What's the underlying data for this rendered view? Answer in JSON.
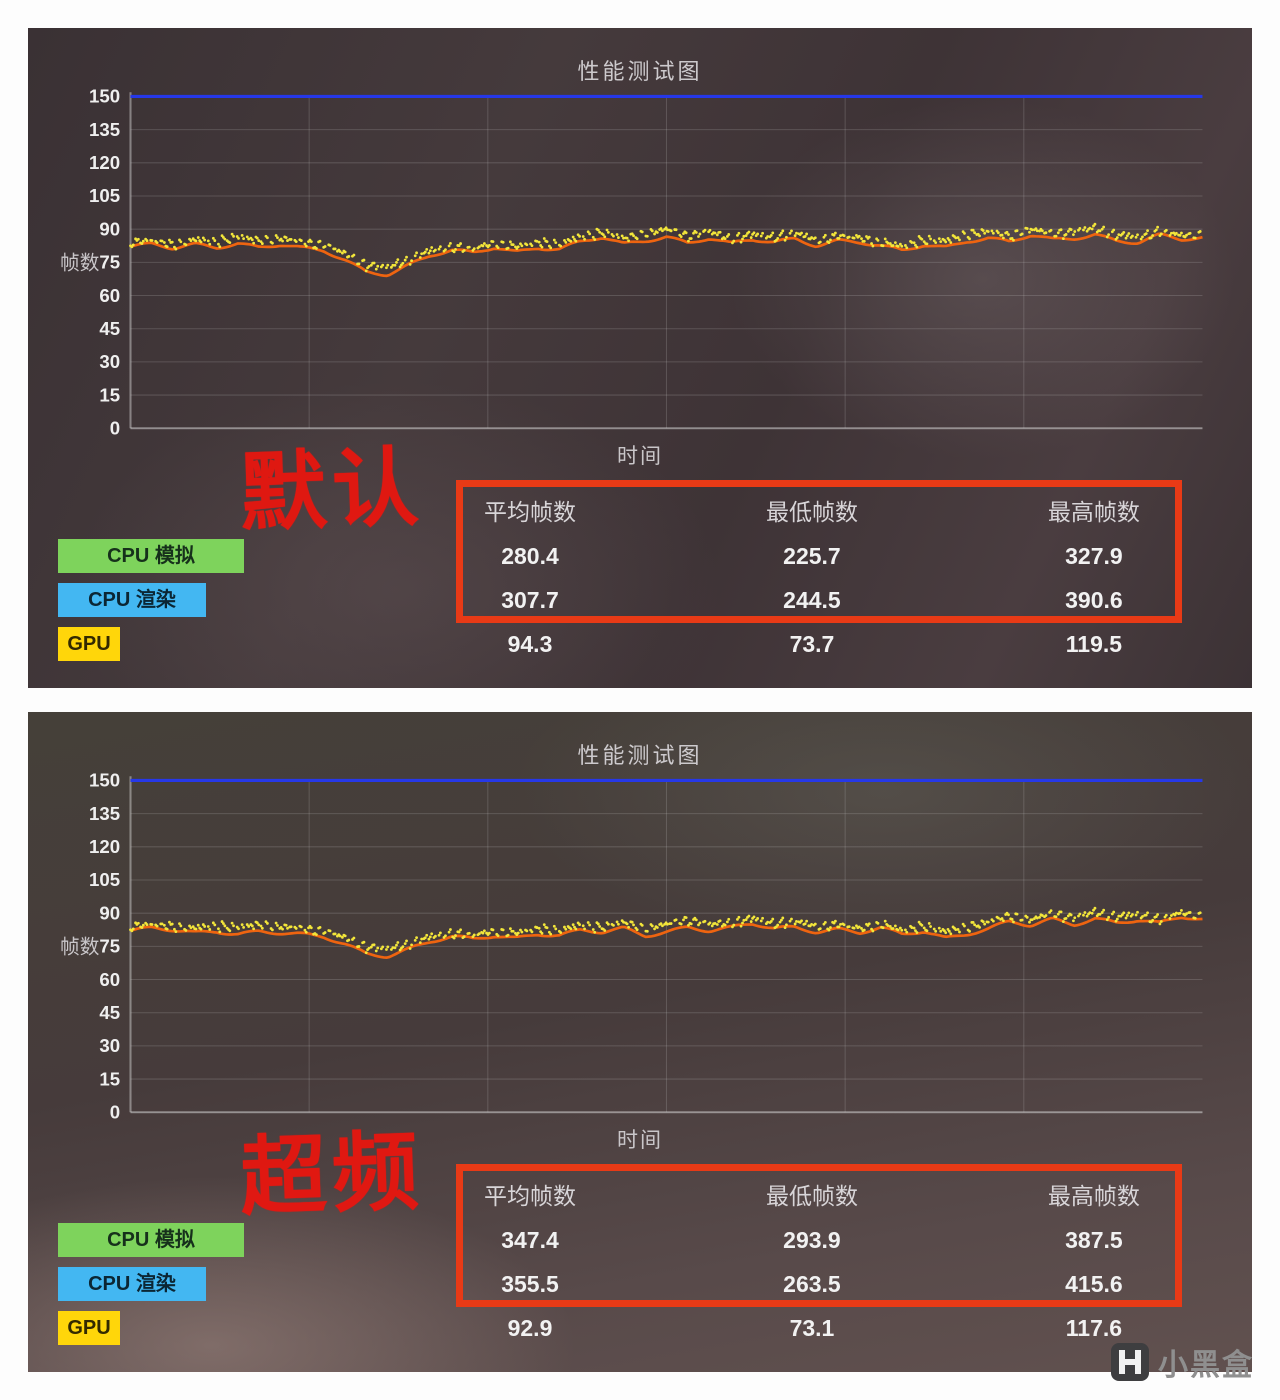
{
  "watermark": {
    "text": "小黑盒"
  },
  "chart_data": [
    {
      "type": "line",
      "title": "性能测试图",
      "xlabel": "时间",
      "ylabel": "帧数",
      "ylim": [
        0,
        150
      ],
      "yticks": [
        0,
        15,
        30,
        45,
        60,
        75,
        90,
        105,
        120,
        135,
        150
      ],
      "grid": true,
      "cap": 150,
      "cap_color": "#2638e8",
      "dots_color": "#f3e63a",
      "stamp": "默认",
      "series": [
        {
          "name": "fps",
          "color": "#ee6410",
          "points": [
            [
              0,
              82
            ],
            [
              2,
              83
            ],
            [
              4,
              81
            ],
            [
              6,
              83
            ],
            [
              8,
              82
            ],
            [
              10,
              84
            ],
            [
              12,
              82
            ],
            [
              14,
              83
            ],
            [
              16,
              81
            ],
            [
              18,
              80
            ],
            [
              20,
              76
            ],
            [
              22,
              71
            ],
            [
              24,
              70
            ],
            [
              26,
              74
            ],
            [
              28,
              78
            ],
            [
              30,
              80
            ],
            [
              32,
              79
            ],
            [
              34,
              82
            ],
            [
              36,
              80
            ],
            [
              38,
              82
            ],
            [
              40,
              81
            ],
            [
              42,
              84
            ],
            [
              44,
              86
            ],
            [
              46,
              83
            ],
            [
              48,
              85
            ],
            [
              50,
              87
            ],
            [
              52,
              84
            ],
            [
              54,
              86
            ],
            [
              56,
              83
            ],
            [
              58,
              85
            ],
            [
              60,
              84
            ],
            [
              62,
              86
            ],
            [
              64,
              83
            ],
            [
              66,
              85
            ],
            [
              68,
              84
            ],
            [
              70,
              82
            ],
            [
              72,
              80
            ],
            [
              74,
              83
            ],
            [
              76,
              82
            ],
            [
              78,
              85
            ],
            [
              80,
              86
            ],
            [
              82,
              84
            ],
            [
              84,
              87
            ],
            [
              86,
              85
            ],
            [
              88,
              86
            ],
            [
              90,
              88
            ],
            [
              92,
              85
            ],
            [
              94,
              84
            ],
            [
              96,
              87
            ],
            [
              98,
              85
            ],
            [
              100,
              86
            ]
          ]
        }
      ],
      "table": {
        "headers": [
          "平均帧数",
          "最低帧数",
          "最高帧数"
        ],
        "rows": [
          {
            "label": "CPU 模拟",
            "color": "#7ed35c",
            "values": [
              "280.4",
              "225.7",
              "327.9"
            ]
          },
          {
            "label": "CPU 渲染",
            "color": "#43b7f2",
            "values": [
              "307.7",
              "244.5",
              "390.6"
            ]
          },
          {
            "label": "GPU",
            "color": "#ffd60a",
            "values": [
              "94.3",
              "73.7",
              "119.5"
            ]
          }
        ]
      }
    },
    {
      "type": "line",
      "title": "性能测试图",
      "xlabel": "时间",
      "ylabel": "帧数",
      "ylim": [
        0,
        150
      ],
      "yticks": [
        0,
        15,
        30,
        45,
        60,
        75,
        90,
        105,
        120,
        135,
        150
      ],
      "grid": true,
      "cap": 150,
      "cap_color": "#2638e8",
      "dots_color": "#f3e63a",
      "stamp": "超频",
      "series": [
        {
          "name": "fps",
          "color": "#ee6410",
          "points": [
            [
              0,
              82
            ],
            [
              2,
              83
            ],
            [
              4,
              82
            ],
            [
              6,
              81
            ],
            [
              8,
              82
            ],
            [
              10,
              81
            ],
            [
              12,
              82
            ],
            [
              14,
              81
            ],
            [
              16,
              80
            ],
            [
              18,
              79
            ],
            [
              20,
              76
            ],
            [
              22,
              72
            ],
            [
              24,
              71
            ],
            [
              26,
              74
            ],
            [
              28,
              77
            ],
            [
              30,
              79
            ],
            [
              32,
              78
            ],
            [
              34,
              80
            ],
            [
              36,
              79
            ],
            [
              38,
              81
            ],
            [
              40,
              80
            ],
            [
              42,
              82
            ],
            [
              44,
              81
            ],
            [
              46,
              83
            ],
            [
              48,
              80
            ],
            [
              50,
              82
            ],
            [
              52,
              84
            ],
            [
              54,
              82
            ],
            [
              56,
              83
            ],
            [
              58,
              85
            ],
            [
              60,
              83
            ],
            [
              62,
              84
            ],
            [
              64,
              82
            ],
            [
              66,
              83
            ],
            [
              68,
              81
            ],
            [
              70,
              83
            ],
            [
              72,
              80
            ],
            [
              74,
              82
            ],
            [
              76,
              79
            ],
            [
              78,
              81
            ],
            [
              80,
              83
            ],
            [
              82,
              86
            ],
            [
              84,
              84
            ],
            [
              86,
              87
            ],
            [
              88,
              85
            ],
            [
              90,
              88
            ],
            [
              92,
              86
            ],
            [
              94,
              87
            ],
            [
              96,
              85
            ],
            [
              98,
              88
            ],
            [
              100,
              87
            ]
          ]
        }
      ],
      "table": {
        "headers": [
          "平均帧数",
          "最低帧数",
          "最高帧数"
        ],
        "rows": [
          {
            "label": "CPU 模拟",
            "color": "#7ed35c",
            "values": [
              "347.4",
              "293.9",
              "387.5"
            ]
          },
          {
            "label": "CPU 渲染",
            "color": "#43b7f2",
            "values": [
              "355.5",
              "263.5",
              "415.6"
            ]
          },
          {
            "label": "GPU",
            "color": "#ffd60a",
            "values": [
              "92.9",
              "73.1",
              "117.6"
            ]
          }
        ]
      }
    }
  ]
}
